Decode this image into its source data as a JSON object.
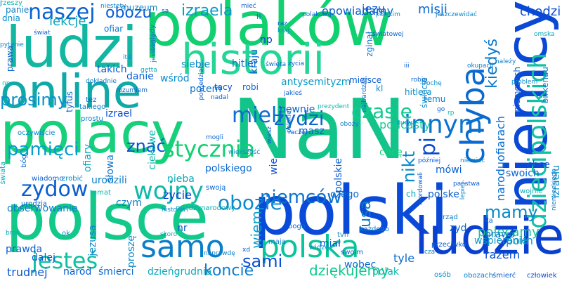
{
  "words": [
    {
      "text": "NaN",
      "color": "#12c48a"
    },
    {
      "text": "polaków",
      "color": "#10d070"
    },
    {
      "text": "polski",
      "color": "#0a4ad8"
    },
    {
      "text": "polacy",
      "color": "#16d07c"
    },
    {
      "text": "polsce",
      "color": "#12c98a"
    },
    {
      "text": "ludzi",
      "color": "#11b7a0"
    },
    {
      "text": "online",
      "color": "#0fa9a8"
    },
    {
      "text": "historii",
      "color": "#23d696"
    },
    {
      "text": "niemcy",
      "color": "#0a48d6"
    },
    {
      "text": "ludzie",
      "color": "#0a40cf"
    },
    {
      "text": "polska",
      "color": "#0ac49a"
    },
    {
      "text": "samo",
      "color": "#0a7ec8"
    },
    {
      "text": "dziecipolskich",
      "color": "#11c0a6"
    },
    {
      "text": "zydow",
      "color": "#0a5ed2"
    },
    {
      "text": "wojny",
      "color": "#10b8a8"
    },
    {
      "text": "stycznia",
      "color": "#10d072"
    },
    {
      "text": "chyba",
      "color": "#0a6ad0"
    },
    {
      "text": "innym",
      "color": "#0a73cc"
    },
    {
      "text": "jesteś",
      "color": "#10c0a2"
    },
    {
      "text": "naszej",
      "color": "#0a62d2"
    },
    {
      "text": "obozie",
      "color": "#0a8ad0"
    },
    {
      "text": "niemców",
      "color": "#0a74cc"
    },
    {
      "text": "czasie",
      "color": "#0fcc90"
    },
    {
      "text": "mieli",
      "color": "#0a6ed2"
    },
    {
      "text": "zydzi",
      "color": "#0a64d0"
    },
    {
      "text": "pamięci",
      "color": "#0a9ccc"
    },
    {
      "text": "prosimy",
      "color": "#0a92cc"
    },
    {
      "text": "koncie",
      "color": "#0a7ed0"
    },
    {
      "text": "sami",
      "color": "#0a50d4"
    },
    {
      "text": "mamy",
      "color": "#0a8ac8"
    },
    {
      "text": "lekcje",
      "color": "#0aa8b8"
    },
    {
      "text": "obozu",
      "color": "#0a5cd2"
    },
    {
      "text": "izraela",
      "color": "#0a9ac8"
    },
    {
      "text": "dziękujemy",
      "color": "#10c88e"
    },
    {
      "text": "nikt",
      "color": "#0a8ac8"
    },
    {
      "text": "usa",
      "color": "#0a7ec8"
    },
    {
      "text": "pi",
      "color": "#0a4ad0"
    },
    {
      "text": "kiedyś",
      "color": "#0a78cc"
    },
    {
      "text": "znać",
      "color": "#0a50d4"
    },
    {
      "text": "polecamy",
      "color": "#10c88e"
    },
    {
      "text": "wiem",
      "color": "#0aa0c8"
    },
    {
      "text": "misji",
      "color": "#0a68d0"
    },
    {
      "text": "podcasty",
      "color": "#12c89a"
    },
    {
      "text": "naroduofiarach",
      "color": "#0a6ed0"
    },
    {
      "text": "chodzi",
      "color": "#0a4cd4"
    },
    {
      "text": "jezu",
      "color": "#0a5ad2"
    },
    {
      "text": "opowiadamy",
      "color": "#0a5ed0"
    },
    {
      "text": "izraelu",
      "color": "#0a8ccc"
    },
    {
      "text": "wspieranie",
      "color": "#0a96c8"
    },
    {
      "text": "polin",
      "color": "#0a9ac8"
    },
    {
      "text": "razem",
      "color": "#0a50d4"
    },
    {
      "text": "dalej",
      "color": "#0a5cd2"
    },
    {
      "text": "trudnej",
      "color": "#0a5ad2"
    },
    {
      "text": "tyle",
      "color": "#0a6ad0"
    },
    {
      "text": "wobec",
      "color": "#0a6ad0"
    },
    {
      "text": "polak",
      "color": "#0ab8ac"
    },
    {
      "text": "naród",
      "color": "#0a5ed0"
    },
    {
      "text": "śmierci",
      "color": "#0a6ad0"
    },
    {
      "text": "dzieńgrudnia",
      "color": "#0aa8b8"
    },
    {
      "text": "życie",
      "color": "#0a40cf"
    },
    {
      "text": "nieba",
      "color": "#0aa8b8"
    },
    {
      "text": "obserwowanie",
      "color": "#0a7ec8"
    },
    {
      "text": "urodzili",
      "color": "#0a7ec8"
    },
    {
      "text": "jezusa",
      "color": "#0a8ac8"
    },
    {
      "text": "prawda",
      "color": "#0a5ed2"
    },
    {
      "text": "proszę",
      "color": "#0a8ac8"
    },
    {
      "text": "ciekawe",
      "color": "#0ab8ac"
    },
    {
      "text": "siebie",
      "color": "#0a8ac8"
    },
    {
      "text": "hitler",
      "color": "#0a74cc"
    },
    {
      "text": "antysemityzm",
      "color": "#0a9ac8"
    },
    {
      "text": "danie",
      "color": "#0a62d2"
    },
    {
      "text": "takich",
      "color": "#0a58d2"
    },
    {
      "text": "wśród",
      "color": "#0a8ccc"
    },
    {
      "text": "potem",
      "color": "#0a78cc"
    },
    {
      "text": "izrael",
      "color": "#0a4cd4"
    },
    {
      "text": "pewnie",
      "color": "#0a64d0"
    },
    {
      "text": "masz",
      "color": "#0a62d2"
    },
    {
      "text": "chcę",
      "color": "#16d07c"
    },
    {
      "text": "mówi",
      "color": "#0a5ed2"
    },
    {
      "text": "chce",
      "color": "#0a5ad2"
    },
    {
      "text": "swoich",
      "color": "#0a64d0"
    },
    {
      "text": "czego",
      "color": "#0a6ad0"
    },
    {
      "text": "polske",
      "color": "#0a5ed2"
    },
    {
      "text": "prawo",
      "color": "#0a74cc"
    },
    {
      "text": "zyd",
      "color": "#0a62d2"
    },
    {
      "text": "miał",
      "color": "#0a5ad2"
    },
    {
      "text": "czym",
      "color": "#0a7ec8"
    },
    {
      "text": "nr",
      "color": "#0a5ad2"
    },
    {
      "text": "polskie",
      "color": "#0a5ed2"
    },
    {
      "text": "wie",
      "color": "#0a4cd4"
    },
    {
      "text": "polskiego",
      "color": "#0a68d0"
    },
    {
      "text": "ofiary",
      "color": "#0aa8b8"
    },
    {
      "text": "słowa",
      "color": "#0a74cc"
    },
    {
      "text": "np",
      "color": "#0a3ed0"
    },
    {
      "text": "kraju",
      "color": "#0a6ad0"
    },
    {
      "text": "ofiar",
      "color": "#0a78cc"
    },
    {
      "text": "muzeum",
      "color": "#0a7ec8"
    },
    {
      "text": "prawa",
      "color": "#0a5ed2"
    },
    {
      "text": "panie",
      "color": "#0a7ec8"
    },
    {
      "text": "dnia",
      "color": "#0a8ccc"
    },
    {
      "text": "tyfus",
      "color": "#0a64d0"
    },
    {
      "text": "temu",
      "color": "#0a7ec8"
    },
    {
      "text": "kl",
      "color": "#0a8ccc"
    },
    {
      "text": "ii",
      "color": "#0a6ad0"
    },
    {
      "text": "ch",
      "color": "#0aa8b8"
    },
    {
      "text": "zginął",
      "color": "#0a74cc"
    },
    {
      "text": "niemczech",
      "color": "#0a5ed2"
    },
    {
      "text": "birkenau",
      "color": "#0a7ec8"
    },
    {
      "text": "tacy",
      "color": "#0a4cd4"
    },
    {
      "text": "robi",
      "color": "#0a64d0"
    },
    {
      "text": "miejsce",
      "color": "#0a5ed2"
    },
    {
      "text": "hitlera",
      "color": "#0a8ccc"
    },
    {
      "text": "świecie",
      "color": "#0a8ccc"
    },
    {
      "text": "zagłady",
      "color": "#0a7ec8"
    },
    {
      "text": "tez",
      "color": "#0a5ed2"
    },
    {
      "text": "takiego",
      "color": "#0a7ec8"
    },
    {
      "text": "prostu",
      "color": "#0a7ec8"
    },
    {
      "text": "oczywiście",
      "color": "#0a8ccc"
    },
    {
      "text": "świata",
      "color": "#0aa8b8"
    },
    {
      "text": "bóg",
      "color": "#0a64d0"
    },
    {
      "text": "wiadomo",
      "color": "#0a5ed2"
    },
    {
      "text": "zrobić",
      "color": "#0a8ccc"
    },
    {
      "text": "temat",
      "color": "#0ab8ac"
    },
    {
      "text": "urodzia",
      "color": "#0a5ed2"
    },
    {
      "text": "historia",
      "color": "#0a8ccc"
    },
    {
      "text": "międzynarodowy",
      "color": "#0aa8b8"
    },
    {
      "text": "swoją",
      "color": "#0a64d0"
    },
    {
      "text": "boga",
      "color": "#0a64d0"
    },
    {
      "text": "maja",
      "color": "#0a7ec8"
    },
    {
      "text": "tvn",
      "color": "#0a8ccc"
    },
    {
      "text": "swoim",
      "color": "#0a5ed2"
    },
    {
      "text": "każdego",
      "color": "#0a7ec8"
    },
    {
      "text": "przeciwko",
      "color": "#0a5ed2"
    },
    {
      "text": "osób",
      "color": "#0a8ccc"
    },
    {
      "text": "obozach",
      "color": "#0a7ec8"
    },
    {
      "text": "śmierć",
      "color": "#0a5ed2"
    },
    {
      "text": "człowiek",
      "color": "#0a4cd4"
    },
    {
      "text": "xd",
      "color": "#0a5ed2"
    },
    {
      "text": "skoro",
      "color": "#0aa8b8"
    },
    {
      "text": "naprawdę",
      "color": "#0a7ec8"
    },
    {
      "text": "widzę",
      "color": "#0a8ccc"
    },
    {
      "text": "ok",
      "color": "#0a8ccc"
    },
    {
      "text": "brak",
      "color": "#0aa8b8"
    },
    {
      "text": "państwa",
      "color": "#0a5ed2"
    },
    {
      "text": "rząd",
      "color": "#0a7ec8"
    },
    {
      "text": "ka",
      "color": "#0a64d0"
    },
    {
      "text": "wojnie",
      "color": "#0aa8b8"
    },
    {
      "text": "niemieckiego",
      "color": "#0a7ec8"
    },
    {
      "text": "lepiej",
      "color": "#0a8ccc"
    },
    {
      "text": "później",
      "color": "#0a5ed2"
    },
    {
      "text": "niemiec",
      "color": "#0a8ccc"
    },
    {
      "text": "mordowali",
      "color": "#0a5ed2"
    },
    {
      "text": "obozy",
      "color": "#0a7ec8"
    },
    {
      "text": "kurwa",
      "color": "#0a8ccc"
    },
    {
      "text": "raczej",
      "color": "#0a5ed2"
    },
    {
      "text": "większość",
      "color": "#0a8ccc"
    },
    {
      "text": "mogli",
      "color": "#0a64d0"
    },
    {
      "text": "wiesz",
      "color": "#0a5ed2"
    },
    {
      "text": "polskiej",
      "color": "#0a7ec8"
    },
    {
      "text": "nadal",
      "color": "#0a5ed2"
    },
    {
      "text": "prezydent",
      "color": "#0ab8ac"
    },
    {
      "text": "najbardziej",
      "color": "#0a64d0"
    },
    {
      "text": "powiedział",
      "color": "#0a5ed2"
    },
    {
      "text": "problem",
      "color": "#0a8ccc"
    },
    {
      "text": "np",
      "color": "#0ab8ac"
    },
    {
      "text": "dokładnie",
      "color": "#0a7ec8"
    },
    {
      "text": "rozumiem",
      "color": "#0a5ed2"
    },
    {
      "text": "getta",
      "color": "#0aa8b8"
    },
    {
      "text": "itd",
      "color": "#0a8ccc"
    },
    {
      "text": "jesteśmy",
      "color": "#0a7ec8"
    },
    {
      "text": "świat",
      "color": "#0a5ed2"
    },
    {
      "text": "pytanie",
      "color": "#0a8ccc"
    },
    {
      "text": "niestety",
      "color": "#0a7ec8"
    },
    {
      "text": "sa",
      "color": "#0a64d0"
    },
    {
      "text": "mieć",
      "color": "#0a5ed2"
    },
    {
      "text": "raz",
      "color": "#0a5ed2"
    },
    {
      "text": "kraj",
      "color": "#0a8ccc"
    },
    {
      "text": "polakom",
      "color": "#0a64d0"
    },
    {
      "text": "polskim",
      "color": "#0a8ccc"
    },
    {
      "text": "jeszcze",
      "color": "#0a7ec8"
    },
    {
      "text": "widać",
      "color": "#0a8ccc"
    },
    {
      "text": "światowej",
      "color": "#0a64d0"
    },
    {
      "text": "okupacji",
      "color": "#0a7ec8"
    },
    {
      "text": "omska",
      "color": "#0aa8b8"
    },
    {
      "text": "iii",
      "color": "#0a5ed2"
    },
    {
      "text": "robią",
      "color": "#0a64d0"
    },
    {
      "text": "trochę",
      "color": "#0a8ccc"
    },
    {
      "text": "życia",
      "color": "#0a5ed2"
    },
    {
      "text": "święta",
      "color": "#0a64d0"
    },
    {
      "text": "należy",
      "color": "#0a7ec8"
    },
    {
      "text": "jakieś",
      "color": "#0a5ed2"
    },
    {
      "text": "go",
      "color": "#0a64d0"
    },
    {
      "text": "rp",
      "color": "#0ab8ac"
    },
    {
      "text": "cza",
      "color": "#0a7ec8"
    },
    {
      "text": "rzeszy",
      "color": "#0ab8ac"
    },
    {
      "text": "j",
      "color": "#0a7ec8"
    }
  ]
}
